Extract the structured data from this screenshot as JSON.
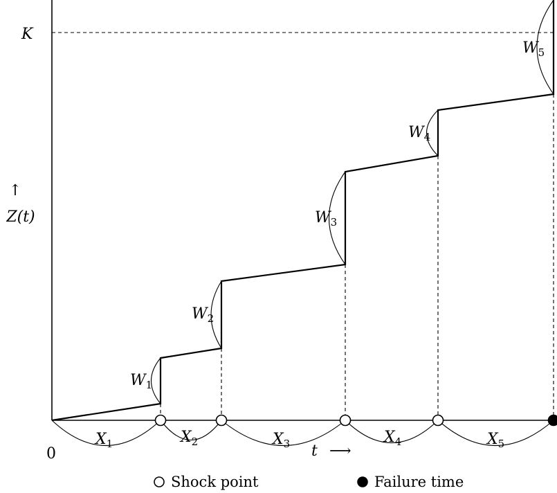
{
  "diagram": {
    "labels": {
      "threshold": "K",
      "y_axis_name": "Z(t)",
      "y_arrow": "↑",
      "origin": "0",
      "x_axis_name": "t",
      "x_arrow": "⟶"
    },
    "increments": [
      {
        "letter": "W",
        "index": "1"
      },
      {
        "letter": "W",
        "index": "2"
      },
      {
        "letter": "W",
        "index": "3"
      },
      {
        "letter": "W",
        "index": "4"
      },
      {
        "letter": "W",
        "index": "5"
      }
    ],
    "intervals": [
      {
        "letter": "X",
        "index": "1"
      },
      {
        "letter": "X",
        "index": "2"
      },
      {
        "letter": "X",
        "index": "3"
      },
      {
        "letter": "X",
        "index": "4"
      },
      {
        "letter": "X",
        "index": "5"
      }
    ],
    "legend": {
      "shock_point": "Shock point",
      "failure_time": "Failure time"
    }
  }
}
